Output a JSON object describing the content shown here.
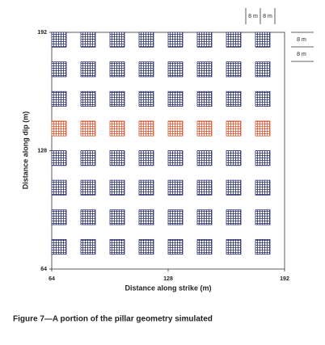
{
  "chart_data": {
    "type": "pillar-grid",
    "xlabel": "Distance along strike (m)",
    "ylabel": "Distance along dip (m)",
    "caption": "Figure 7—A portion of the pillar geometry simulated",
    "xlim": [
      64,
      192
    ],
    "ylim": [
      64,
      192
    ],
    "xticks": [
      64,
      128,
      192
    ],
    "yticks": [
      64,
      128,
      192
    ],
    "pillar_x": [
      64,
      80,
      96,
      112,
      128,
      144,
      160,
      176
    ],
    "pillar_y": [
      184,
      168,
      152,
      136,
      120,
      104,
      88,
      72
    ],
    "pillar_size": 8,
    "row_colors": [
      "#2b2f6b",
      "#2b2f6b",
      "#2b2f6b",
      "#e0522e",
      "#2b2f6b",
      "#2b2f6b",
      "#2b2f6b",
      "#2b2f6b"
    ],
    "annotations": [
      "8 m",
      "8 m",
      "8 m",
      "8 m"
    ]
  }
}
